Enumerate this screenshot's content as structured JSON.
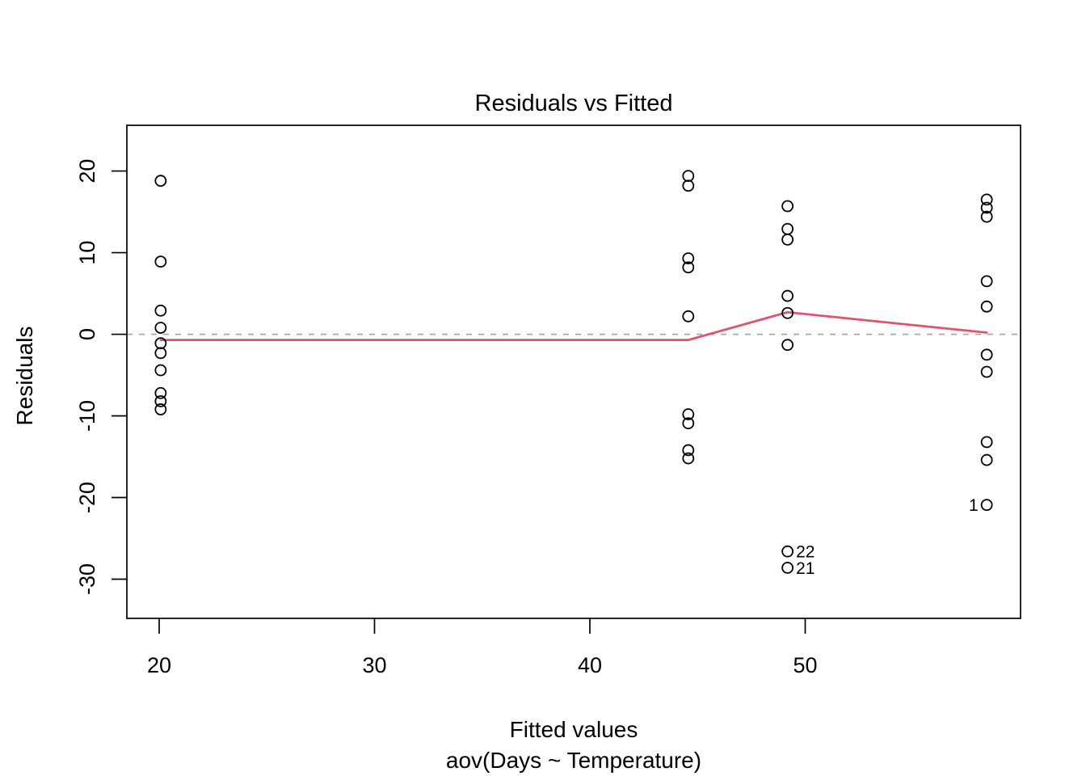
{
  "title": "Residuals vs Fitted",
  "axis": {
    "x_label": "Fitted values",
    "x_sublabel": "aov(Days ~ Temperature)",
    "y_label": "Residuals"
  },
  "colors": {
    "points": "#000000",
    "smooth_line": "#DF536B",
    "zero_line": "#A3A3A3",
    "frame": "#000000"
  },
  "chart_data": {
    "type": "scatter",
    "title": "Residuals vs Fitted",
    "xlabel": "Fitted values",
    "xlabel_line2": "aov(Days ~ Temperature)",
    "ylabel": "Residuals",
    "xlim": [
      18.5,
      60.0
    ],
    "ylim": [
      -34.8,
      25.6
    ],
    "x_ticks": [
      20,
      30,
      40,
      50
    ],
    "y_ticks": [
      -30,
      -20,
      -10,
      0,
      10,
      20
    ],
    "grid": false,
    "legend": "none",
    "zero_line_y": 0,
    "points": [
      {
        "x": 20.07,
        "y": 18.8
      },
      {
        "x": 20.07,
        "y": 8.9
      },
      {
        "x": 20.07,
        "y": 2.9
      },
      {
        "x": 20.07,
        "y": 0.8
      },
      {
        "x": 20.07,
        "y": -1.1
      },
      {
        "x": 20.07,
        "y": -2.3
      },
      {
        "x": 20.07,
        "y": -4.4
      },
      {
        "x": 20.07,
        "y": -7.2
      },
      {
        "x": 20.07,
        "y": -8.2
      },
      {
        "x": 20.07,
        "y": -9.2
      },
      {
        "x": 44.57,
        "y": 19.4
      },
      {
        "x": 44.57,
        "y": 18.2
      },
      {
        "x": 44.57,
        "y": 9.3
      },
      {
        "x": 44.57,
        "y": 8.2
      },
      {
        "x": 44.57,
        "y": 2.2
      },
      {
        "x": 44.57,
        "y": -9.8
      },
      {
        "x": 44.57,
        "y": -10.9
      },
      {
        "x": 44.57,
        "y": -14.2
      },
      {
        "x": 44.57,
        "y": -15.2
      },
      {
        "x": 49.18,
        "y": 15.7
      },
      {
        "x": 49.18,
        "y": 12.9
      },
      {
        "x": 49.18,
        "y": 11.6
      },
      {
        "x": 49.18,
        "y": 4.7
      },
      {
        "x": 49.18,
        "y": 2.6
      },
      {
        "x": 49.18,
        "y": -1.3
      },
      {
        "x": 58.43,
        "y": 16.5
      },
      {
        "x": 58.43,
        "y": 15.5
      },
      {
        "x": 58.43,
        "y": 14.4
      },
      {
        "x": 58.43,
        "y": 6.5
      },
      {
        "x": 58.43,
        "y": 3.4
      },
      {
        "x": 58.43,
        "y": -2.5
      },
      {
        "x": 58.43,
        "y": -4.6
      },
      {
        "x": 58.43,
        "y": -13.2
      },
      {
        "x": 58.43,
        "y": -15.4
      }
    ],
    "labeled_points": [
      {
        "x": 49.18,
        "y": -26.6,
        "label": "22",
        "side": "right"
      },
      {
        "x": 49.18,
        "y": -28.6,
        "label": "21",
        "side": "right"
      },
      {
        "x": 58.43,
        "y": -20.9,
        "label": "1",
        "side": "left"
      }
    ],
    "smooth_line": [
      {
        "x": 20.07,
        "y": -0.7
      },
      {
        "x": 44.57,
        "y": -0.7
      },
      {
        "x": 49.18,
        "y": 2.7
      },
      {
        "x": 58.43,
        "y": 0.2
      }
    ]
  }
}
